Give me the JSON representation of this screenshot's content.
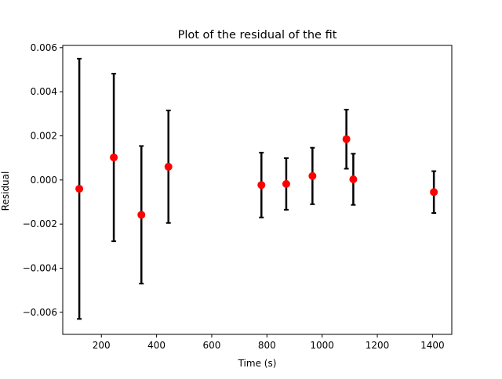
{
  "chart_data": {
    "type": "scatter",
    "title": "Plot of the residual of the fit",
    "xlabel": "Time (s)",
    "ylabel": "Residual",
    "xlim": [
      60,
      1470
    ],
    "ylim": [
      -0.007,
      0.0061
    ],
    "xticks": [
      200,
      400,
      600,
      800,
      1000,
      1200,
      1400
    ],
    "xtick_labels": [
      "200",
      "400",
      "600",
      "800",
      "1000",
      "1200",
      "1400"
    ],
    "yticks": [
      -0.006,
      -0.004,
      -0.002,
      0.0,
      0.002,
      0.004,
      0.006
    ],
    "ytick_labels": [
      "−0.006",
      "−0.004",
      "−0.002",
      "0.000",
      "0.002",
      "0.004",
      "0.006"
    ],
    "grid": false,
    "series": [
      {
        "marker_color": "#ff0000",
        "errorbar_color": "#000000",
        "points": [
          {
            "x": 120,
            "y": -0.0004,
            "err": 0.0059
          },
          {
            "x": 245,
            "y": 0.00102,
            "err": 0.0038
          },
          {
            "x": 345,
            "y": -0.00158,
            "err": 0.00312
          },
          {
            "x": 443,
            "y": 0.0006,
            "err": 0.00255
          },
          {
            "x": 780,
            "y": -0.00023,
            "err": 0.00147
          },
          {
            "x": 870,
            "y": -0.00018,
            "err": 0.00117
          },
          {
            "x": 965,
            "y": 0.00018,
            "err": 0.00128
          },
          {
            "x": 1088,
            "y": 0.00185,
            "err": 0.00134
          },
          {
            "x": 1113,
            "y": 3e-05,
            "err": 0.00116
          },
          {
            "x": 1405,
            "y": -0.00055,
            "err": 0.00095
          }
        ]
      }
    ]
  }
}
